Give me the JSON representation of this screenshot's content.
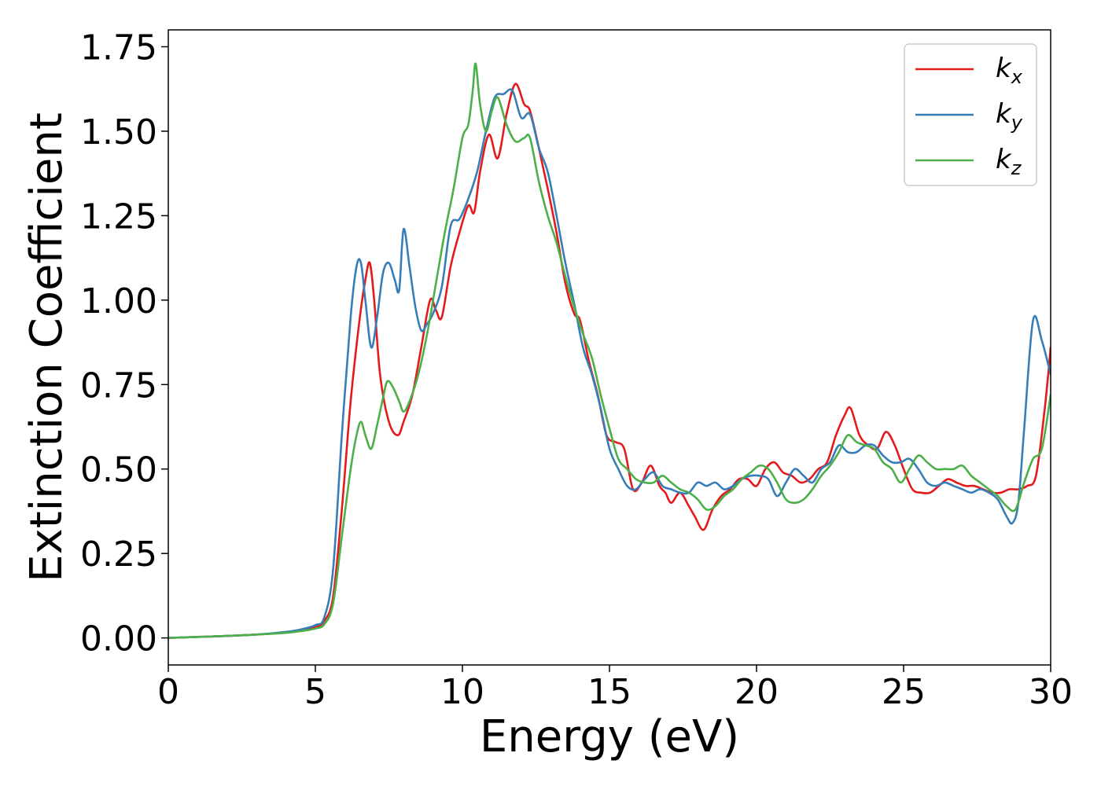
{
  "chart_data": {
    "type": "line",
    "title": "",
    "xlabel": "Energy (eV)",
    "ylabel": "Extinction Coefficient",
    "xlim": [
      0,
      30
    ],
    "ylim": [
      -0.08,
      1.8
    ],
    "xticks": [
      0,
      5,
      10,
      15,
      20,
      25,
      30
    ],
    "xtick_labels": [
      "0",
      "5",
      "10",
      "15",
      "20",
      "25",
      "30"
    ],
    "yticks": [
      0.0,
      0.25,
      0.5,
      0.75,
      1.0,
      1.25,
      1.5,
      1.75
    ],
    "ytick_labels": [
      "0.00",
      "0.25",
      "0.50",
      "0.75",
      "1.00",
      "1.25",
      "1.50",
      "1.75"
    ],
    "grid": false,
    "legend_position": "top-right",
    "series": [
      {
        "name": "k_x",
        "label_main": "k",
        "label_sub": "x",
        "color": "#e41a1c",
        "x": [
          0,
          1,
          2,
          3,
          4,
          4.5,
          5,
          5.3,
          5.6,
          5.9,
          6.2,
          6.5,
          6.7,
          6.85,
          7.0,
          7.2,
          7.5,
          7.8,
          8.0,
          8.3,
          8.6,
          8.9,
          9.1,
          9.3,
          9.6,
          9.9,
          10.2,
          10.4,
          10.6,
          10.9,
          11.2,
          11.5,
          11.8,
          12.1,
          12.3,
          12.6,
          12.9,
          13.2,
          13.5,
          13.8,
          14.0,
          14.3,
          14.6,
          14.9,
          15.2,
          15.5,
          15.8,
          16.1,
          16.4,
          16.7,
          16.9,
          17.1,
          17.4,
          17.7,
          17.9,
          18.2,
          18.5,
          18.8,
          19.1,
          19.4,
          19.7,
          20.0,
          20.3,
          20.6,
          20.9,
          21.2,
          21.5,
          21.8,
          22.1,
          22.4,
          22.7,
          23.0,
          23.2,
          23.5,
          23.8,
          24.1,
          24.4,
          24.7,
          25.0,
          25.3,
          25.6,
          25.9,
          26.2,
          26.5,
          26.8,
          27.1,
          27.4,
          27.7,
          28.0,
          28.3,
          28.6,
          28.9,
          29.2,
          29.5,
          29.8,
          30.0
        ],
        "y": [
          0.0,
          0.003,
          0.006,
          0.01,
          0.016,
          0.022,
          0.032,
          0.05,
          0.12,
          0.38,
          0.7,
          0.94,
          1.06,
          1.11,
          1.0,
          0.78,
          0.64,
          0.6,
          0.64,
          0.72,
          0.86,
          1.0,
          0.97,
          0.95,
          1.1,
          1.2,
          1.28,
          1.26,
          1.38,
          1.49,
          1.42,
          1.55,
          1.64,
          1.58,
          1.56,
          1.45,
          1.33,
          1.2,
          1.05,
          0.96,
          0.94,
          0.82,
          0.72,
          0.6,
          0.58,
          0.56,
          0.44,
          0.46,
          0.51,
          0.45,
          0.43,
          0.4,
          0.43,
          0.39,
          0.36,
          0.32,
          0.38,
          0.42,
          0.44,
          0.47,
          0.47,
          0.45,
          0.5,
          0.52,
          0.49,
          0.48,
          0.46,
          0.47,
          0.5,
          0.52,
          0.6,
          0.66,
          0.68,
          0.6,
          0.57,
          0.56,
          0.61,
          0.57,
          0.5,
          0.44,
          0.43,
          0.43,
          0.45,
          0.47,
          0.46,
          0.45,
          0.45,
          0.44,
          0.43,
          0.43,
          0.44,
          0.44,
          0.45,
          0.48,
          0.68,
          0.86
        ]
      },
      {
        "name": "k_y",
        "label_main": "k",
        "label_sub": "y",
        "color": "#377eb8",
        "x": [
          0,
          1,
          2,
          3,
          4,
          4.5,
          5,
          5.3,
          5.6,
          5.9,
          6.2,
          6.4,
          6.55,
          6.7,
          6.9,
          7.1,
          7.3,
          7.5,
          7.7,
          7.85,
          8.0,
          8.2,
          8.4,
          8.6,
          8.8,
          9.0,
          9.3,
          9.6,
          9.9,
          10.2,
          10.5,
          10.8,
          11.1,
          11.4,
          11.7,
          12.0,
          12.3,
          12.6,
          12.9,
          13.2,
          13.5,
          13.8,
          14.1,
          14.4,
          14.7,
          15.0,
          15.3,
          15.6,
          15.9,
          16.2,
          16.5,
          16.8,
          17.1,
          17.4,
          17.7,
          18.0,
          18.3,
          18.6,
          18.9,
          19.2,
          19.5,
          19.8,
          20.1,
          20.4,
          20.7,
          21.0,
          21.3,
          21.6,
          21.9,
          22.2,
          22.5,
          22.8,
          23.1,
          23.4,
          23.7,
          24.0,
          24.3,
          24.6,
          24.9,
          25.2,
          25.5,
          25.8,
          26.1,
          26.4,
          26.7,
          27.0,
          27.3,
          27.6,
          27.9,
          28.2,
          28.5,
          28.7,
          28.9,
          29.1,
          29.4,
          29.7,
          30.0
        ],
        "y": [
          0.0,
          0.003,
          0.006,
          0.01,
          0.018,
          0.025,
          0.038,
          0.06,
          0.2,
          0.6,
          0.95,
          1.1,
          1.11,
          1.0,
          0.86,
          0.95,
          1.08,
          1.11,
          1.06,
          1.03,
          1.21,
          1.1,
          0.98,
          0.91,
          0.93,
          0.96,
          1.04,
          1.22,
          1.24,
          1.3,
          1.38,
          1.5,
          1.6,
          1.61,
          1.62,
          1.54,
          1.55,
          1.45,
          1.38,
          1.25,
          1.11,
          0.99,
          0.86,
          0.78,
          0.68,
          0.56,
          0.5,
          0.45,
          0.44,
          0.47,
          0.49,
          0.45,
          0.44,
          0.43,
          0.43,
          0.46,
          0.45,
          0.46,
          0.44,
          0.45,
          0.47,
          0.48,
          0.48,
          0.47,
          0.42,
          0.46,
          0.5,
          0.48,
          0.46,
          0.5,
          0.52,
          0.57,
          0.55,
          0.55,
          0.57,
          0.57,
          0.54,
          0.52,
          0.52,
          0.53,
          0.5,
          0.46,
          0.45,
          0.46,
          0.45,
          0.44,
          0.43,
          0.44,
          0.43,
          0.41,
          0.36,
          0.34,
          0.4,
          0.62,
          0.94,
          0.88,
          0.78
        ]
      },
      {
        "name": "k_z",
        "label_main": "k",
        "label_sub": "z",
        "color": "#4daf4a",
        "x": [
          0,
          1,
          2,
          3,
          4,
          4.5,
          5,
          5.3,
          5.6,
          5.9,
          6.2,
          6.4,
          6.55,
          6.7,
          6.9,
          7.1,
          7.3,
          7.45,
          7.65,
          7.85,
          8.0,
          8.2,
          8.5,
          8.8,
          9.1,
          9.4,
          9.7,
          10.0,
          10.2,
          10.35,
          10.45,
          10.6,
          10.8,
          11.0,
          11.2,
          11.5,
          11.8,
          12.1,
          12.3,
          12.6,
          12.9,
          13.2,
          13.5,
          13.8,
          14.1,
          14.4,
          14.7,
          15.0,
          15.3,
          15.6,
          15.9,
          16.2,
          16.5,
          16.8,
          17.1,
          17.4,
          17.7,
          18.0,
          18.3,
          18.6,
          18.9,
          19.2,
          19.5,
          19.8,
          20.1,
          20.4,
          20.7,
          21.0,
          21.3,
          21.6,
          21.9,
          22.2,
          22.5,
          22.8,
          23.1,
          23.4,
          23.7,
          24.0,
          24.3,
          24.6,
          24.9,
          25.2,
          25.5,
          25.8,
          26.1,
          26.4,
          26.7,
          27.0,
          27.3,
          27.6,
          27.9,
          28.2,
          28.5,
          28.8,
          29.1,
          29.4,
          29.7,
          30.0
        ],
        "y": [
          0.0,
          0.003,
          0.006,
          0.01,
          0.015,
          0.02,
          0.028,
          0.04,
          0.1,
          0.3,
          0.5,
          0.6,
          0.64,
          0.6,
          0.56,
          0.63,
          0.71,
          0.76,
          0.74,
          0.7,
          0.67,
          0.7,
          0.78,
          0.9,
          1.05,
          1.2,
          1.33,
          1.48,
          1.52,
          1.62,
          1.7,
          1.58,
          1.5,
          1.56,
          1.6,
          1.52,
          1.47,
          1.48,
          1.48,
          1.35,
          1.25,
          1.17,
          1.07,
          0.98,
          0.9,
          0.83,
          0.72,
          0.62,
          0.53,
          0.5,
          0.47,
          0.46,
          0.46,
          0.48,
          0.46,
          0.44,
          0.43,
          0.41,
          0.38,
          0.39,
          0.42,
          0.44,
          0.47,
          0.49,
          0.51,
          0.5,
          0.46,
          0.41,
          0.4,
          0.41,
          0.44,
          0.48,
          0.51,
          0.55,
          0.6,
          0.58,
          0.57,
          0.56,
          0.52,
          0.5,
          0.46,
          0.5,
          0.54,
          0.52,
          0.5,
          0.5,
          0.5,
          0.51,
          0.48,
          0.46,
          0.44,
          0.42,
          0.39,
          0.38,
          0.46,
          0.53,
          0.56,
          0.72
        ]
      }
    ]
  }
}
